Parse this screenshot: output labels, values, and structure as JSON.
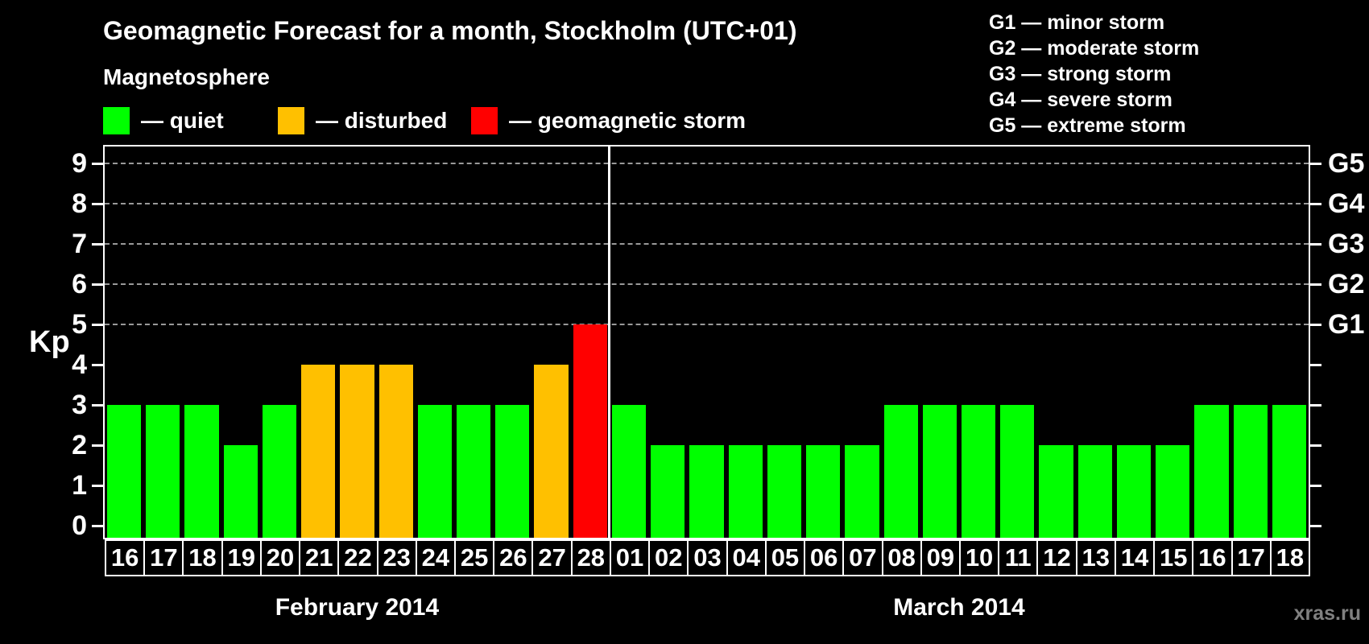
{
  "title": "Geomagnetic Forecast for a month, Stockholm (UTC+01)",
  "subtitle": "Magnetosphere",
  "legend": {
    "items": [
      {
        "key": "quiet",
        "color": "#00ff00",
        "label": "— quiet"
      },
      {
        "key": "disturbed",
        "color": "#ffc000",
        "label": "— disturbed"
      },
      {
        "key": "storm",
        "color": "#ff0000",
        "label": "— geomagnetic storm"
      }
    ]
  },
  "storm_scale_legend": [
    {
      "key": "g1",
      "label": "G1 — minor storm"
    },
    {
      "key": "g2",
      "label": "G2 — moderate storm"
    },
    {
      "key": "g3",
      "label": "G3 — strong storm"
    },
    {
      "key": "g4",
      "label": "G4 — severe storm"
    },
    {
      "key": "g5",
      "label": "G5 — extreme storm"
    }
  ],
  "watermark": "xras.ru",
  "chart_data": {
    "type": "bar",
    "title": "Geomagnetic Forecast for a month, Stockholm (UTC+01)",
    "ylabel": "Kp",
    "ylim": [
      0,
      9.5
    ],
    "yticks": [
      0,
      1,
      2,
      3,
      4,
      5,
      6,
      7,
      8,
      9
    ],
    "gridlines_kp": [
      5,
      6,
      7,
      8,
      9
    ],
    "grid_style": "dashed-horizontal",
    "legend_position": "top",
    "right_axis": [
      {
        "kp": 5,
        "label": "G1"
      },
      {
        "kp": 6,
        "label": "G2"
      },
      {
        "kp": 7,
        "label": "G3"
      },
      {
        "kp": 8,
        "label": "G4"
      },
      {
        "kp": 9,
        "label": "G5"
      }
    ],
    "colors": {
      "quiet": "#00ff00",
      "disturbed": "#ffc000",
      "storm": "#ff0000",
      "axis": "#ffffff",
      "gridline": "#999999"
    },
    "months": [
      {
        "label": "February 2014",
        "days": [
          {
            "day": "16",
            "kp": 3,
            "condition": "quiet"
          },
          {
            "day": "17",
            "kp": 3,
            "condition": "quiet"
          },
          {
            "day": "18",
            "kp": 3,
            "condition": "quiet"
          },
          {
            "day": "19",
            "kp": 2,
            "condition": "quiet"
          },
          {
            "day": "20",
            "kp": 3,
            "condition": "quiet"
          },
          {
            "day": "21",
            "kp": 4,
            "condition": "disturbed"
          },
          {
            "day": "22",
            "kp": 4,
            "condition": "disturbed"
          },
          {
            "day": "23",
            "kp": 4,
            "condition": "disturbed"
          },
          {
            "day": "24",
            "kp": 3,
            "condition": "quiet"
          },
          {
            "day": "25",
            "kp": 3,
            "condition": "quiet"
          },
          {
            "day": "26",
            "kp": 3,
            "condition": "quiet"
          },
          {
            "day": "27",
            "kp": 4,
            "condition": "disturbed"
          },
          {
            "day": "28",
            "kp": 5,
            "condition": "storm"
          }
        ]
      },
      {
        "label": "March 2014",
        "days": [
          {
            "day": "01",
            "kp": 3,
            "condition": "quiet"
          },
          {
            "day": "02",
            "kp": 2,
            "condition": "quiet"
          },
          {
            "day": "03",
            "kp": 2,
            "condition": "quiet"
          },
          {
            "day": "04",
            "kp": 2,
            "condition": "quiet"
          },
          {
            "day": "05",
            "kp": 2,
            "condition": "quiet"
          },
          {
            "day": "06",
            "kp": 2,
            "condition": "quiet"
          },
          {
            "day": "07",
            "kp": 2,
            "condition": "quiet"
          },
          {
            "day": "08",
            "kp": 3,
            "condition": "quiet"
          },
          {
            "day": "09",
            "kp": 3,
            "condition": "quiet"
          },
          {
            "day": "10",
            "kp": 3,
            "condition": "quiet"
          },
          {
            "day": "11",
            "kp": 3,
            "condition": "quiet"
          },
          {
            "day": "12",
            "kp": 2,
            "condition": "quiet"
          },
          {
            "day": "13",
            "kp": 2,
            "condition": "quiet"
          },
          {
            "day": "14",
            "kp": 2,
            "condition": "quiet"
          },
          {
            "day": "15",
            "kp": 2,
            "condition": "quiet"
          },
          {
            "day": "16",
            "kp": 3,
            "condition": "quiet"
          },
          {
            "day": "17",
            "kp": 3,
            "condition": "quiet"
          },
          {
            "day": "18",
            "kp": 3,
            "condition": "quiet"
          }
        ]
      }
    ]
  }
}
